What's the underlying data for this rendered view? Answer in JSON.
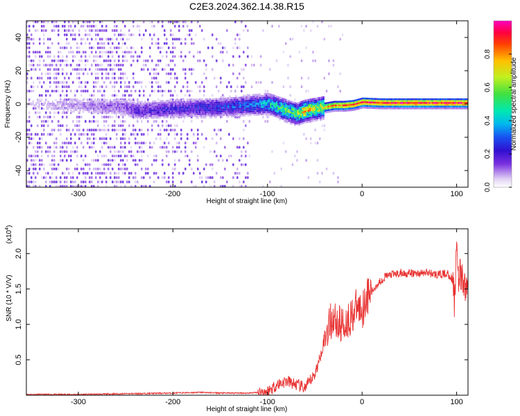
{
  "title": "C2E3.2024.362.14.38.R15",
  "colorbar": {
    "label": "Normalized spectral amplitude",
    "ticks": [
      "0.0",
      "0.2",
      "0.4",
      "0.6",
      "0.8"
    ],
    "tick_values": [
      0.0,
      0.2,
      0.4,
      0.6,
      0.8
    ],
    "range": [
      0,
      1
    ],
    "colors": [
      "#ffffff",
      "#d8c8f0",
      "#7a30e0",
      "#4a10c8",
      "#1818e8",
      "#00b8f0",
      "#00e8b8",
      "#40e040",
      "#c8f020",
      "#ffc000",
      "#ff4000",
      "#ff0000",
      "#ff00c0"
    ]
  },
  "chart_data": [
    {
      "type": "heatmap",
      "title": "C2E3.2024.362.14.38.R15",
      "xlabel": "Height of straight line (km)",
      "ylabel": "Frequency (Hz)",
      "xlim": [
        -355,
        112
      ],
      "ylim": [
        -50,
        50
      ],
      "x_ticks": [
        -300,
        -200,
        -100,
        0,
        100
      ],
      "x_tick_labels": [
        "-300",
        "-200",
        "-100",
        "0",
        "100"
      ],
      "y_ticks": [
        -40,
        -20,
        0,
        20,
        40
      ],
      "y_tick_labels": [
        "-40",
        "-20",
        "0",
        "20",
        "40"
      ],
      "ridge": {
        "x": [
          -355,
          -250,
          -240,
          -200,
          -150,
          -120,
          -100,
          -90,
          -80,
          -70,
          -60,
          -50,
          -40,
          -30,
          -20,
          -10,
          0,
          20,
          50,
          80,
          112
        ],
        "freq_hz": [
          0,
          -2,
          -4,
          -3,
          -2,
          -1,
          0,
          -2,
          -4,
          -6,
          -4,
          -3,
          -2,
          -1,
          -1,
          -0.5,
          1,
          0.5,
          0.5,
          0.5,
          0.5
        ],
        "peak_amplitude": [
          0.05,
          0.15,
          0.2,
          0.22,
          0.28,
          0.35,
          0.45,
          0.55,
          0.6,
          0.65,
          0.85,
          0.7,
          0.8,
          0.85,
          0.9,
          0.9,
          0.95,
          0.95,
          0.95,
          0.95,
          0.95
        ]
      }
    },
    {
      "type": "line",
      "xlabel": "Height of straight line (km)",
      "ylabel": "SNR (10 * V/V)",
      "y_multiplier_label": "(x10",
      "y_multiplier_exp": "4",
      "y_multiplier_close": ")",
      "xlim": [
        -355,
        112
      ],
      "ylim": [
        0,
        2.35
      ],
      "x_ticks": [
        -300,
        -200,
        -100,
        0,
        100
      ],
      "x_tick_labels": [
        "-300",
        "-200",
        "-100",
        "0",
        "100"
      ],
      "y_ticks": [
        0.5,
        1.0,
        1.5,
        2.0
      ],
      "y_tick_labels": [
        "0.5",
        "1.0",
        "1.5",
        "2.0"
      ],
      "color": "#e83030",
      "x": [
        -355,
        -300,
        -250,
        -200,
        -170,
        -150,
        -120,
        -100,
        -90,
        -80,
        -70,
        -60,
        -50,
        -45,
        -40,
        -35,
        -30,
        -25,
        -20,
        -15,
        -10,
        -5,
        0,
        5,
        10,
        15,
        20,
        25,
        30,
        40,
        50,
        60,
        70,
        80,
        90,
        95,
        98,
        100,
        102,
        105,
        108,
        112
      ],
      "y": [
        0.01,
        0.01,
        0.02,
        0.03,
        0.04,
        0.03,
        0.03,
        0.05,
        0.15,
        0.2,
        0.15,
        0.1,
        0.3,
        0.5,
        0.8,
        1.0,
        1.1,
        1.0,
        1.0,
        1.05,
        1.15,
        1.25,
        1.2,
        1.4,
        1.45,
        1.55,
        1.62,
        1.68,
        1.7,
        1.72,
        1.72,
        1.72,
        1.73,
        1.7,
        1.72,
        1.65,
        1.3,
        2.2,
        1.7,
        1.65,
        1.53,
        1.53
      ]
    }
  ]
}
